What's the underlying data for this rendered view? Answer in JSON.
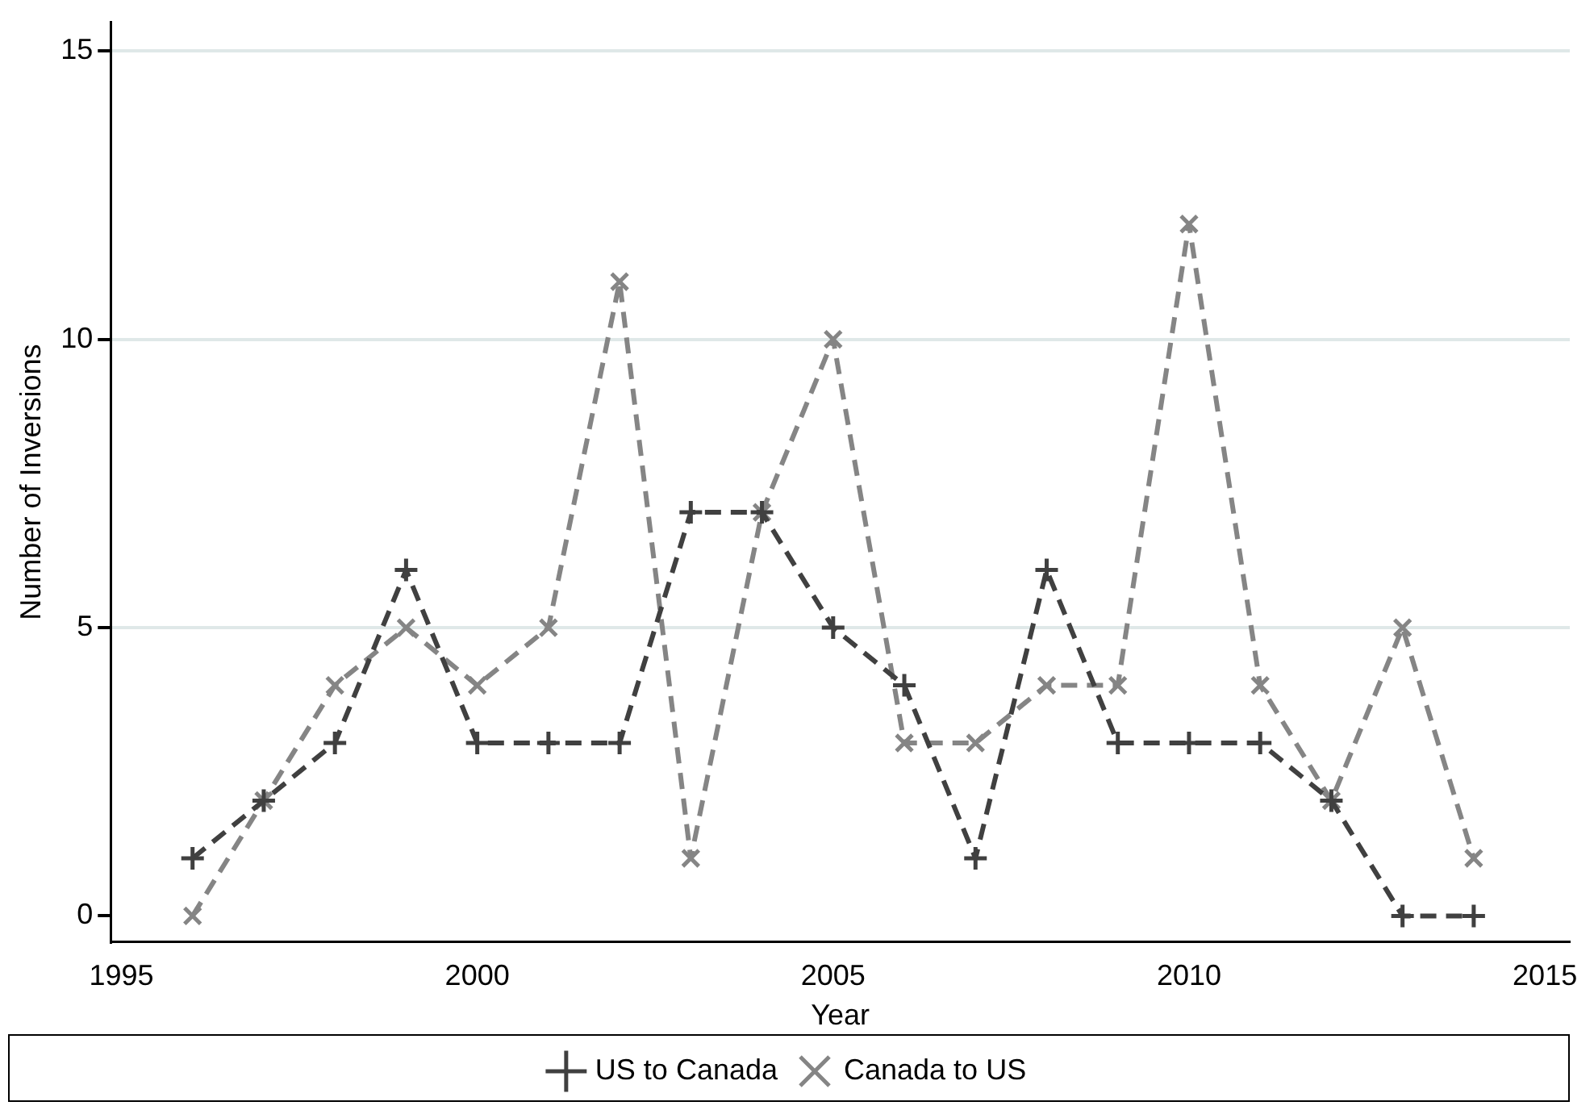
{
  "chart_data": {
    "type": "line",
    "xlabel": "Year",
    "ylabel": "Number of Inversions",
    "x": [
      1996,
      1997,
      1998,
      1999,
      2000,
      2001,
      2002,
      2003,
      2004,
      2005,
      2006,
      2007,
      2008,
      2009,
      2010,
      2011,
      2012,
      2013,
      2014
    ],
    "series": [
      {
        "name": "US to Canada",
        "color": "#404040",
        "values": [
          1,
          2,
          3,
          6,
          3,
          3,
          3,
          7,
          7,
          5,
          4,
          1,
          6,
          3,
          3,
          3,
          2,
          0,
          0
        ]
      },
      {
        "name": "Canada to US",
        "color": "#858585",
        "values": [
          0,
          2,
          4,
          5,
          4,
          5,
          11,
          1,
          7,
          10,
          3,
          3,
          4,
          4,
          12,
          4,
          2,
          5,
          1
        ]
      }
    ],
    "xlim": [
      1994.85,
      2015.35
    ],
    "xticks": [
      1995,
      2000,
      2005,
      2010,
      2015
    ],
    "ylim": [
      -0.45,
      15.5
    ],
    "yticks": [
      0,
      5,
      10,
      15
    ],
    "grid": "y",
    "legend": "bottom",
    "marker": "cross",
    "line_style": "dashed"
  }
}
